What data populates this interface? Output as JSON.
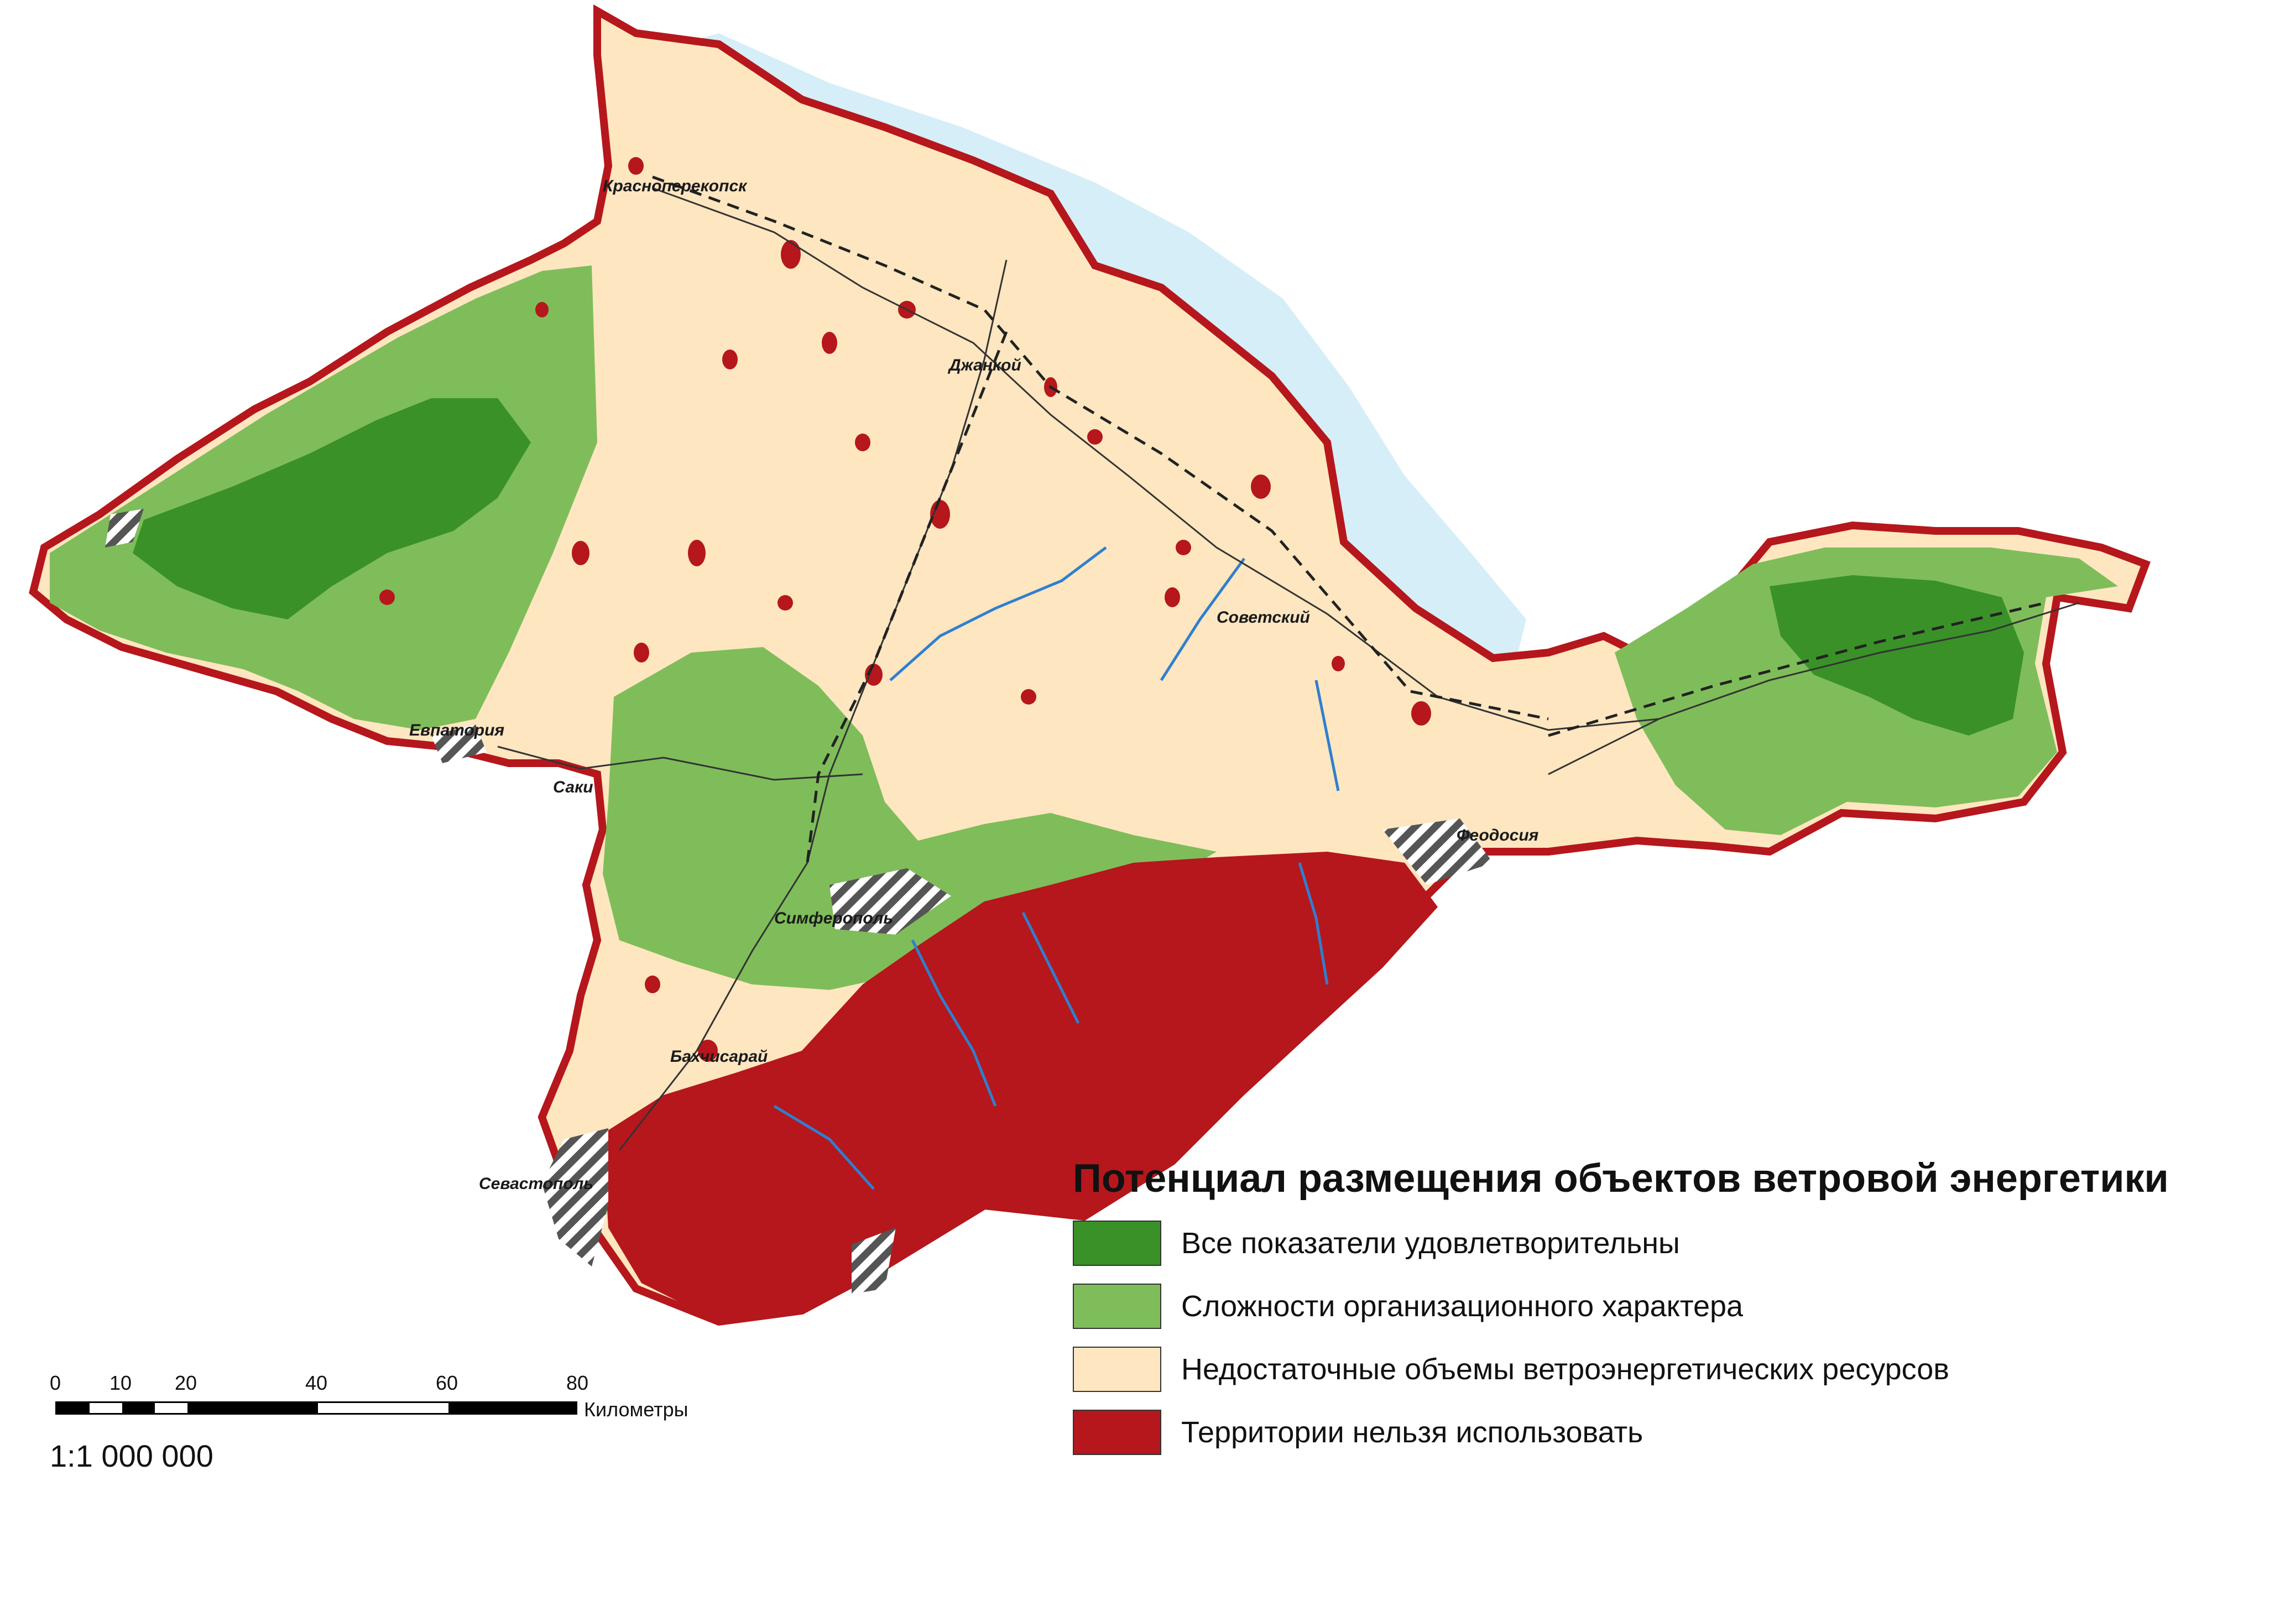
{
  "legend": {
    "title": "Потенциал размещения объектов ветровой энергетики",
    "items": [
      {
        "label": "Все показатели удовлетворительны",
        "color": "#3a9128"
      },
      {
        "label": "Сложности организационного характера",
        "color": "#7fbd5a"
      },
      {
        "label": "Недостаточные объемы ветроэнергетических ресурсов",
        "color": "#fde6c0"
      },
      {
        "label": "Территории нельзя использовать",
        "color": "#b5171c"
      }
    ]
  },
  "cities": {
    "krasnoperekopsk": "Красноперекопск",
    "dzhankoy": "Джанкой",
    "sovetsky": "Советский",
    "evpatoria": "Евпатория",
    "saki": "Саки",
    "feodosia": "Феодосия",
    "simferopol": "Симферополь",
    "bakhchisaray": "Бахчисарай",
    "sevastopol": "Севастополь"
  },
  "scale": {
    "ticks": [
      "0",
      "10",
      "20",
      "40",
      "60",
      "80"
    ],
    "unit": "Километры",
    "ratio": "1:1 000 000"
  },
  "colors": {
    "water": "#d6eef8",
    "river": "#2f7fd0",
    "road": "#333333"
  }
}
